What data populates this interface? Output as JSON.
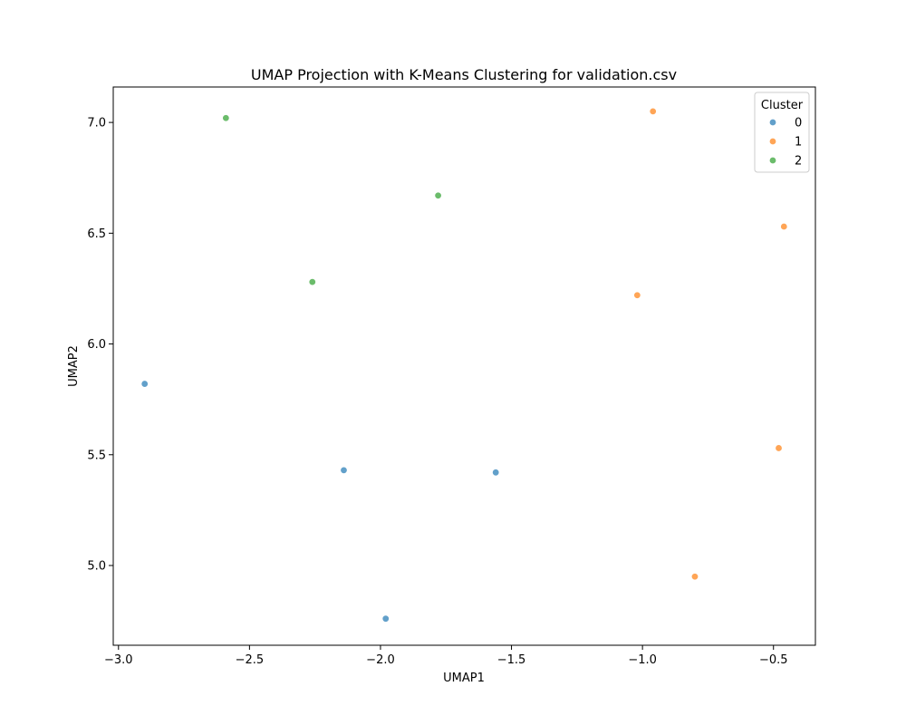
{
  "chart_data": {
    "type": "scatter",
    "title": "UMAP Projection with K-Means Clustering for validation.csv",
    "xlabel": "UMAP1",
    "ylabel": "UMAP2",
    "xlim": [
      -3.02,
      -0.34
    ],
    "ylim": [
      4.64,
      7.16
    ],
    "xticks": [
      -3.0,
      -2.5,
      -2.0,
      -1.5,
      -1.0,
      -0.5
    ],
    "xtick_labels": [
      "−3.0",
      "−2.5",
      "−2.0",
      "−1.5",
      "−1.0",
      "−0.5"
    ],
    "yticks": [
      5.0,
      5.5,
      6.0,
      6.5,
      7.0
    ],
    "ytick_labels": [
      "5.0",
      "5.5",
      "6.0",
      "6.5",
      "7.0"
    ],
    "grid": false,
    "legend": {
      "title": "Cluster",
      "position": "top-right"
    },
    "series": [
      {
        "name": "0",
        "color": "#1f77b4",
        "points": [
          {
            "x": -2.9,
            "y": 5.82
          },
          {
            "x": -2.14,
            "y": 5.43
          },
          {
            "x": -1.56,
            "y": 5.42
          },
          {
            "x": -1.98,
            "y": 4.76
          }
        ]
      },
      {
        "name": "1",
        "color": "#ff7f0e",
        "points": [
          {
            "x": -0.96,
            "y": 7.05
          },
          {
            "x": -0.46,
            "y": 6.53
          },
          {
            "x": -1.02,
            "y": 6.22
          },
          {
            "x": -0.48,
            "y": 5.53
          },
          {
            "x": -0.8,
            "y": 4.95
          }
        ]
      },
      {
        "name": "2",
        "color": "#2ca02c",
        "points": [
          {
            "x": -2.59,
            "y": 7.02
          },
          {
            "x": -1.78,
            "y": 6.67
          },
          {
            "x": -2.26,
            "y": 6.28
          }
        ]
      }
    ]
  }
}
